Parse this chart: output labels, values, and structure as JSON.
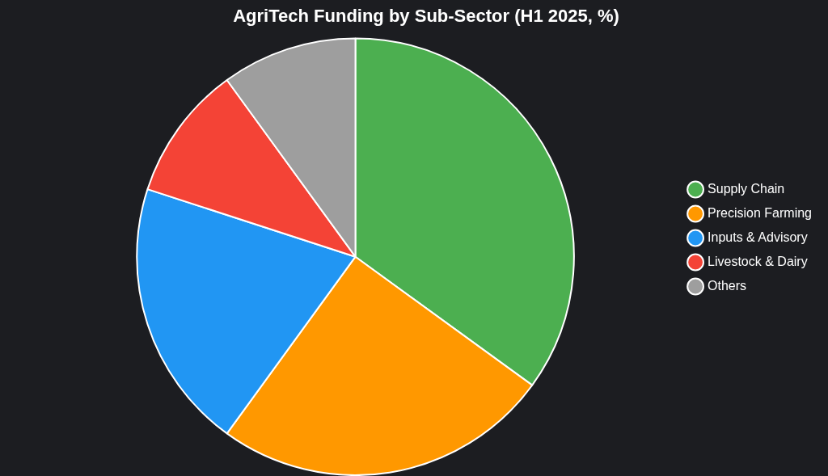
{
  "chart_data": {
    "type": "pie",
    "title": "AgriTech Funding by Sub-Sector (H1 2025, %)",
    "categories": [
      "Supply Chain",
      "Precision Farming",
      "Inputs & Advisory",
      "Livestock & Dairy",
      "Others"
    ],
    "values": [
      35,
      25,
      20,
      10,
      10
    ],
    "colors": [
      "#4caf50",
      "#ff9800",
      "#2196f3",
      "#f44336",
      "#9e9e9e"
    ],
    "legend": "right"
  }
}
